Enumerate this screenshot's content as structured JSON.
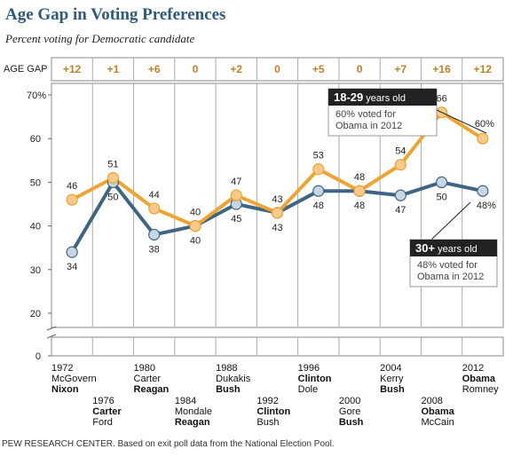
{
  "title": "Age Gap in Voting Preferences",
  "subtitle": "Percent voting for Democratic candidate",
  "age_gap_label": "AGE GAP",
  "footer": "PEW RESEARCH CENTER. Based on exit poll data from the National Election Pool.",
  "colors": {
    "young": "#f0a32f",
    "young_fill": "#f7c98a",
    "old": "#3e6583",
    "old_fill": "#c7d6e3",
    "gap_text": "#c77d1e",
    "title": "#2e5a7e"
  },
  "chart_data": {
    "type": "line",
    "x": [
      1972,
      1976,
      1980,
      1984,
      1988,
      1992,
      1996,
      2000,
      2004,
      2008,
      2012
    ],
    "age_gap": [
      "+12",
      "+1",
      "+6",
      "0",
      "+2",
      "0",
      "+5",
      "0",
      "+7",
      "+16",
      "+12"
    ],
    "series": [
      {
        "name": "18-29",
        "values": [
          46,
          51,
          44,
          40,
          47,
          43,
          53,
          48,
          54,
          66,
          60
        ],
        "labels": [
          "46",
          "51",
          "44",
          "40",
          "47",
          "43",
          "53",
          "48",
          "54",
          "66",
          "60%"
        ]
      },
      {
        "name": "30+",
        "values": [
          34,
          50,
          38,
          40,
          45,
          43,
          48,
          48,
          47,
          50,
          48
        ],
        "labels": [
          "34",
          "50",
          "38",
          "40",
          "45",
          "43",
          "48",
          "48",
          "47",
          "50",
          "48%"
        ]
      }
    ],
    "yticks": [
      "0",
      "20",
      "30",
      "40",
      "50",
      "60",
      "70%"
    ],
    "ylim": [
      20,
      70
    ],
    "elections": [
      {
        "year": "1972",
        "dem": "McGovern",
        "rep": "Nixon",
        "winner": "rep"
      },
      {
        "year": "1976",
        "dem": "Carter",
        "rep": "Ford",
        "winner": "dem"
      },
      {
        "year": "1980",
        "dem": "Carter",
        "rep": "Reagan",
        "winner": "rep"
      },
      {
        "year": "1984",
        "dem": "Mondale",
        "rep": "Reagan",
        "winner": "rep"
      },
      {
        "year": "1988",
        "dem": "Dukakis",
        "rep": "Bush",
        "winner": "rep"
      },
      {
        "year": "1992",
        "dem": "Clinton",
        "rep": "Bush",
        "winner": "dem"
      },
      {
        "year": "1996",
        "dem": "Clinton",
        "rep": "Dole",
        "winner": "dem"
      },
      {
        "year": "2000",
        "dem": "Gore",
        "rep": "Bush",
        "winner": "rep"
      },
      {
        "year": "2004",
        "dem": "Kerry",
        "rep": "Bush",
        "winner": "rep"
      },
      {
        "year": "2008",
        "dem": "Obama",
        "rep": "McCain",
        "winner": "dem"
      },
      {
        "year": "2012",
        "dem": "Obama",
        "rep": "Romney",
        "winner": "dem"
      }
    ],
    "callouts": [
      {
        "group": "18-29",
        "suffix": " years old",
        "text": [
          "60% voted for",
          "Obama in 2012"
        ]
      },
      {
        "group": "30+",
        "suffix": " years old",
        "text": [
          "48% voted for",
          "Obama in 2012"
        ]
      }
    ]
  }
}
